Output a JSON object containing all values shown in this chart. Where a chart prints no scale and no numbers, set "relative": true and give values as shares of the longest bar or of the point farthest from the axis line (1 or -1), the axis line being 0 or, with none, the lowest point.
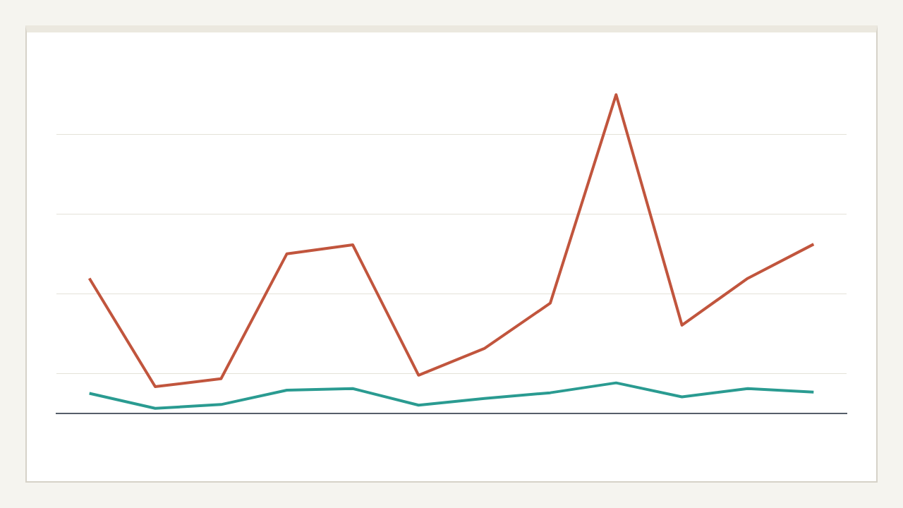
{
  "chart_data": {
    "type": "line",
    "relative": true,
    "categories": [
      null,
      null,
      null,
      null,
      null,
      null,
      null,
      null,
      null,
      null,
      null,
      null
    ],
    "series": [
      {
        "color": "#c1553d",
        "values": [
          0.424,
          0.084,
          0.109,
          0.501,
          0.529,
          0.12,
          0.204,
          0.346,
          1,
          0.277,
          0.424,
          0.531
        ]
      },
      {
        "color": "#2a9b91",
        "values": [
          0.063,
          0.016,
          0.028,
          0.073,
          0.078,
          0.026,
          0.047,
          0.065,
          0.096,
          0.052,
          0.078,
          0.067
        ]
      }
    ],
    "grid": "y",
    "marker": "none",
    "line_style": "solid"
  }
}
